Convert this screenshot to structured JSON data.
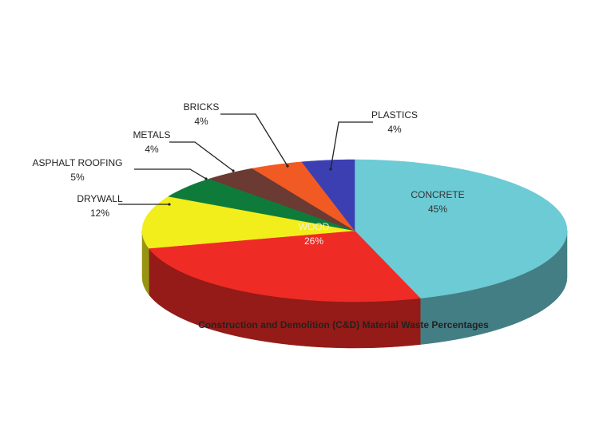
{
  "chart_data": {
    "type": "pie3d",
    "title": "Construction and Demolition (C&D) Material Waste Percentages",
    "categories": [
      "CONCRETE",
      "WOOD",
      "DRYWALL",
      "ASPHALT ROOFING",
      "METALS",
      "BRICKS",
      "PLASTICS"
    ],
    "values": [
      45,
      26,
      12,
      5,
      4,
      4,
      4
    ],
    "value_labels": [
      "45%",
      "26%",
      "12%",
      "5%",
      "4%",
      "4%",
      "4%"
    ],
    "colors": [
      "#6ccbd5",
      "#ee2b25",
      "#f2ee1c",
      "#0f7b3b",
      "#6a3a33",
      "#f15a23",
      "#3b3fb2"
    ]
  }
}
